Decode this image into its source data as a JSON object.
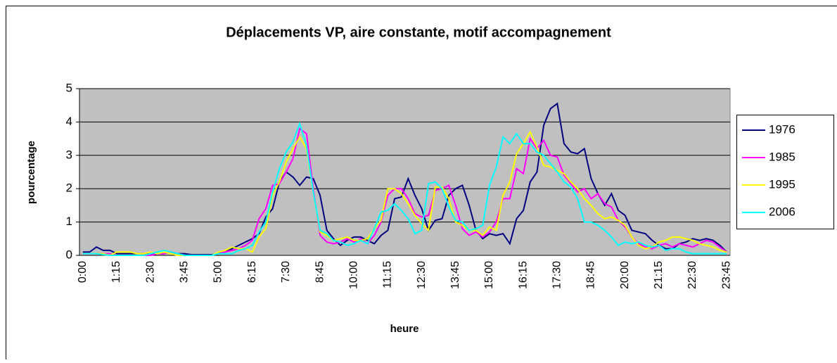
{
  "chart_data": {
    "type": "line",
    "title": "Déplacements VP, aire constante, motif accompagnement",
    "x_label": "heure",
    "y_label": "pourcentage",
    "categories": [
      "0:00",
      null,
      null,
      null,
      null,
      "1:15",
      null,
      null,
      null,
      null,
      "2:30",
      null,
      null,
      null,
      null,
      "3:45",
      null,
      null,
      null,
      null,
      "5:00",
      null,
      null,
      null,
      null,
      "6:15",
      null,
      null,
      null,
      null,
      "7:30",
      null,
      null,
      null,
      null,
      "8:45",
      null,
      null,
      null,
      null,
      "10:00",
      null,
      null,
      null,
      null,
      "11:15",
      null,
      null,
      null,
      null,
      "12:30",
      null,
      null,
      null,
      null,
      "13:45",
      null,
      null,
      null,
      null,
      "15:00",
      null,
      null,
      null,
      null,
      "16:15",
      null,
      null,
      null,
      null,
      "17:30",
      null,
      null,
      null,
      null,
      "18:45",
      null,
      null,
      null,
      null,
      "20:00",
      null,
      null,
      null,
      null,
      "21:15",
      null,
      null,
      null,
      null,
      "22:30",
      null,
      null,
      null,
      null,
      "23:45"
    ],
    "series": [
      {
        "name": "1976",
        "color": "#000080",
        "values": [
          0.1,
          0.1,
          0.25,
          0.15,
          0.15,
          0.05,
          0.05,
          0.05,
          0.05,
          0.05,
          0.05,
          0.05,
          0.05,
          0.1,
          0.05,
          0.05,
          0.02,
          0.02,
          0.02,
          0.02,
          0.05,
          0.1,
          0.2,
          0.3,
          0.4,
          0.5,
          0.65,
          1.15,
          1.4,
          2.2,
          2.5,
          2.35,
          2.1,
          2.35,
          2.3,
          1.8,
          0.75,
          0.5,
          0.3,
          0.45,
          0.55,
          0.55,
          0.45,
          0.35,
          0.6,
          0.75,
          1.7,
          1.75,
          2.3,
          1.8,
          1.4,
          0.75,
          1.05,
          1.1,
          1.8,
          2.0,
          2.1,
          1.5,
          0.75,
          0.5,
          0.65,
          0.6,
          0.65,
          0.35,
          1.1,
          1.35,
          2.2,
          2.5,
          3.9,
          4.4,
          4.55,
          3.35,
          3.1,
          3.05,
          3.2,
          2.3,
          1.85,
          1.5,
          1.85,
          1.35,
          1.2,
          0.75,
          0.7,
          0.65,
          0.45,
          0.3,
          0.2,
          0.2,
          0.35,
          0.4,
          0.5,
          0.45,
          0.5,
          0.45,
          0.3,
          0.1
        ]
      },
      {
        "name": "1985",
        "color": "#ff00ff",
        "values": [
          0.05,
          0.05,
          0.05,
          0.05,
          0.05,
          0,
          0,
          0,
          0,
          0,
          0,
          0.05,
          0.05,
          0.1,
          0.05,
          0,
          0,
          0,
          0,
          0,
          0.05,
          0.1,
          0.15,
          0.2,
          0.3,
          0.45,
          1.1,
          1.4,
          2.1,
          2.15,
          2.5,
          2.9,
          3.8,
          3.65,
          2.0,
          0.6,
          0.4,
          0.35,
          0.4,
          0.5,
          0.4,
          0.5,
          0.35,
          0.6,
          1.0,
          1.8,
          2.0,
          2.0,
          1.7,
          1.25,
          1.15,
          1.2,
          1.95,
          2.0,
          2.1,
          1.5,
          0.8,
          0.6,
          0.7,
          0.55,
          0.7,
          1.0,
          1.7,
          1.7,
          2.6,
          2.45,
          3.5,
          3.2,
          3.45,
          3.0,
          2.95,
          2.4,
          2.15,
          1.9,
          2.0,
          1.7,
          1.85,
          1.55,
          1.45,
          1.05,
          0.85,
          0.55,
          0.35,
          0.25,
          0.2,
          0.3,
          0.35,
          0.25,
          0.35,
          0.3,
          0.25,
          0.35,
          0.45,
          0.4,
          0.25,
          0.1
        ]
      },
      {
        "name": "1995",
        "color": "#ffff00",
        "values": [
          0.05,
          0.05,
          0.05,
          0.05,
          0,
          0.1,
          0.1,
          0.1,
          0.05,
          0.05,
          0.1,
          0.05,
          0.1,
          0.05,
          0,
          0,
          0,
          0,
          0,
          0,
          0.1,
          0.15,
          0.25,
          0.2,
          0.2,
          0.1,
          0.55,
          0.8,
          1.8,
          2.2,
          2.8,
          3.2,
          3.55,
          3.2,
          1.9,
          0.7,
          0.6,
          0.45,
          0.5,
          0.55,
          0.45,
          0.45,
          0.5,
          0.8,
          1.05,
          2.0,
          2.0,
          1.85,
          1.55,
          1.2,
          0.95,
          0.75,
          2.05,
          2.05,
          1.7,
          1.0,
          0.9,
          0.75,
          0.75,
          0.6,
          0.85,
          0.75,
          1.8,
          2.2,
          3.05,
          3.35,
          3.7,
          3.25,
          2.7,
          2.65,
          2.55,
          2.45,
          2.2,
          2.0,
          1.7,
          1.5,
          1.25,
          1.1,
          1.15,
          1.05,
          0.9,
          0.55,
          0.3,
          0.2,
          0.25,
          0.4,
          0.45,
          0.55,
          0.55,
          0.5,
          0.45,
          0.35,
          0.3,
          0.25,
          0.15,
          0.1
        ]
      },
      {
        "name": "2006",
        "color": "#00ffff",
        "values": [
          0.05,
          0.05,
          0.05,
          0.02,
          0,
          0,
          0,
          0,
          0,
          0,
          0.05,
          0.1,
          0.15,
          0.1,
          0.05,
          0,
          0,
          0,
          0,
          0,
          0.05,
          0.05,
          0.05,
          0.15,
          0.2,
          0.3,
          0.7,
          1.0,
          1.9,
          2.6,
          3.1,
          3.4,
          3.95,
          3.3,
          1.9,
          0.75,
          0.65,
          0.45,
          0.4,
          0.3,
          0.35,
          0.45,
          0.35,
          0.8,
          1.3,
          1.35,
          1.55,
          1.35,
          1.1,
          0.65,
          0.75,
          2.15,
          2.2,
          2.0,
          1.45,
          1.05,
          1.0,
          0.75,
          0.8,
          0.9,
          2.1,
          2.65,
          3.55,
          3.35,
          3.65,
          3.35,
          3.35,
          3.1,
          3.0,
          2.75,
          2.5,
          2.2,
          2.05,
          1.7,
          1.0,
          1.0,
          0.9,
          0.75,
          0.55,
          0.3,
          0.4,
          0.35,
          0.4,
          0.3,
          0.25,
          0.3,
          0.15,
          0.2,
          0.2,
          0.1,
          0.05,
          0.05,
          0.05,
          0.05,
          0.05,
          0.05
        ]
      }
    ],
    "ylim": [
      0,
      5
    ],
    "yticks": [
      0,
      1,
      2,
      3,
      4,
      5
    ],
    "grid": true,
    "legend": "right"
  }
}
